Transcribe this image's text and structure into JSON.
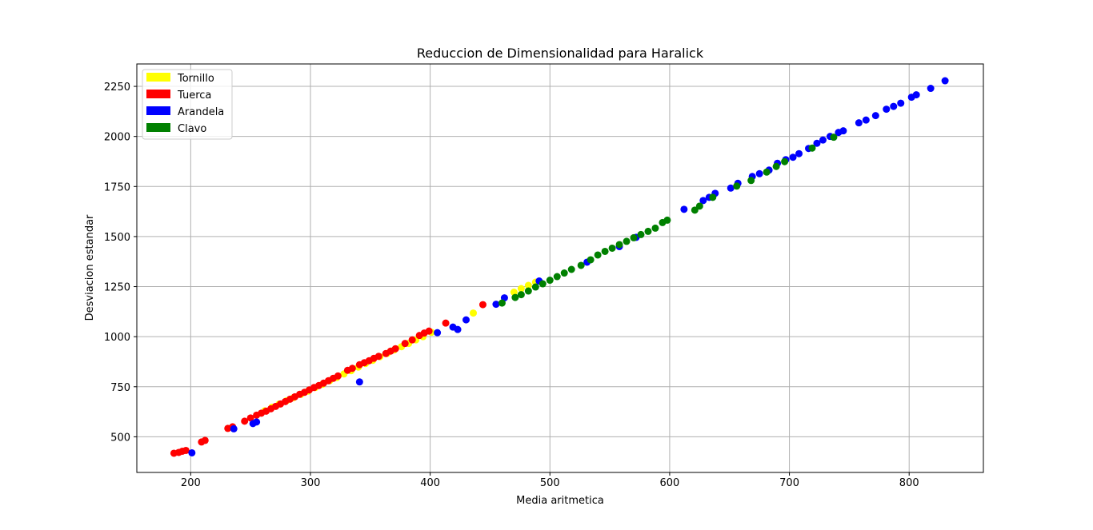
{
  "chart_data": {
    "type": "scatter",
    "title": "Reduccion de Dimensionalidad para Haralick",
    "xlabel": "Media aritmetica",
    "ylabel": "Desviacion estandar",
    "xlim": [
      155,
      862
    ],
    "ylim": [
      322,
      2362
    ],
    "xticks": [
      200,
      300,
      400,
      500,
      600,
      700,
      800
    ],
    "yticks": [
      500,
      750,
      1000,
      1250,
      1500,
      1750,
      2000,
      2250
    ],
    "grid": true,
    "legend_position": "top-left",
    "series": [
      {
        "name": "Tornillo",
        "color": "#ffff00",
        "points": [
          [
            262,
            630
          ],
          [
            268,
            648
          ],
          [
            274,
            664
          ],
          [
            280,
            680
          ],
          [
            286,
            696
          ],
          [
            292,
            712
          ],
          [
            298,
            728
          ],
          [
            304,
            746
          ],
          [
            310,
            762
          ],
          [
            316,
            780
          ],
          [
            322,
            796
          ],
          [
            328,
            814
          ],
          [
            334,
            830
          ],
          [
            340,
            848
          ],
          [
            346,
            866
          ],
          [
            352,
            882
          ],
          [
            358,
            900
          ],
          [
            364,
            916
          ],
          [
            370,
            934
          ],
          [
            376,
            950
          ],
          [
            382,
            966
          ],
          [
            388,
            984
          ],
          [
            394,
            1000
          ],
          [
            401,
            1022
          ],
          [
            436,
            1118
          ],
          [
            470,
            1222
          ],
          [
            476,
            1240
          ],
          [
            482,
            1256
          ],
          [
            488,
            1272
          ]
        ]
      },
      {
        "name": "Tuerca",
        "color": "#ff0000",
        "points": [
          [
            186,
            418
          ],
          [
            190,
            422
          ],
          [
            193,
            428
          ],
          [
            196,
            432
          ],
          [
            209,
            474
          ],
          [
            212,
            482
          ],
          [
            231,
            542
          ],
          [
            235,
            550
          ],
          [
            245,
            578
          ],
          [
            250,
            594
          ],
          [
            255,
            608
          ],
          [
            259,
            618
          ],
          [
            263,
            628
          ],
          [
            267,
            640
          ],
          [
            271,
            652
          ],
          [
            275,
            664
          ],
          [
            279,
            676
          ],
          [
            283,
            688
          ],
          [
            287,
            700
          ],
          [
            291,
            712
          ],
          [
            295,
            722
          ],
          [
            299,
            734
          ],
          [
            303,
            746
          ],
          [
            307,
            756
          ],
          [
            311,
            768
          ],
          [
            315,
            780
          ],
          [
            319,
            792
          ],
          [
            323,
            804
          ],
          [
            331,
            832
          ],
          [
            335,
            842
          ],
          [
            341,
            860
          ],
          [
            345,
            870
          ],
          [
            349,
            880
          ],
          [
            353,
            892
          ],
          [
            357,
            902
          ],
          [
            363,
            916
          ],
          [
            367,
            928
          ],
          [
            371,
            940
          ],
          [
            379,
            966
          ],
          [
            385,
            984
          ],
          [
            391,
            1006
          ],
          [
            395,
            1018
          ],
          [
            399,
            1028
          ],
          [
            413,
            1068
          ],
          [
            444,
            1160
          ]
        ]
      },
      {
        "name": "Arandela",
        "color": "#0000ff",
        "points": [
          [
            201,
            420
          ],
          [
            236,
            540
          ],
          [
            252,
            566
          ],
          [
            255,
            574
          ],
          [
            341,
            774
          ],
          [
            406,
            1020
          ],
          [
            419,
            1048
          ],
          [
            423,
            1036
          ],
          [
            430,
            1084
          ],
          [
            455,
            1162
          ],
          [
            462,
            1194
          ],
          [
            491,
            1278
          ],
          [
            531,
            1372
          ],
          [
            558,
            1450
          ],
          [
            572,
            1496
          ],
          [
            612,
            1636
          ],
          [
            628,
            1680
          ],
          [
            633,
            1696
          ],
          [
            638,
            1716
          ],
          [
            651,
            1742
          ],
          [
            657,
            1766
          ],
          [
            669,
            1800
          ],
          [
            675,
            1814
          ],
          [
            683,
            1832
          ],
          [
            690,
            1866
          ],
          [
            697,
            1884
          ],
          [
            703,
            1896
          ],
          [
            708,
            1914
          ],
          [
            716,
            1940
          ],
          [
            723,
            1966
          ],
          [
            728,
            1982
          ],
          [
            734,
            2000
          ],
          [
            741,
            2020
          ],
          [
            745,
            2028
          ],
          [
            758,
            2068
          ],
          [
            764,
            2082
          ],
          [
            772,
            2104
          ],
          [
            781,
            2136
          ],
          [
            787,
            2150
          ],
          [
            793,
            2166
          ],
          [
            802,
            2196
          ],
          [
            806,
            2208
          ],
          [
            818,
            2240
          ],
          [
            830,
            2278
          ]
        ]
      },
      {
        "name": "Clavo",
        "color": "#008000",
        "points": [
          [
            460,
            1168
          ],
          [
            471,
            1196
          ],
          [
            476,
            1210
          ],
          [
            482,
            1228
          ],
          [
            488,
            1248
          ],
          [
            494,
            1264
          ],
          [
            500,
            1282
          ],
          [
            506,
            1300
          ],
          [
            512,
            1318
          ],
          [
            518,
            1336
          ],
          [
            526,
            1356
          ],
          [
            534,
            1384
          ],
          [
            540,
            1408
          ],
          [
            546,
            1426
          ],
          [
            552,
            1442
          ],
          [
            558,
            1460
          ],
          [
            564,
            1476
          ],
          [
            570,
            1494
          ],
          [
            576,
            1510
          ],
          [
            582,
            1526
          ],
          [
            588,
            1542
          ],
          [
            594,
            1570
          ],
          [
            598,
            1582
          ],
          [
            621,
            1632
          ],
          [
            625,
            1652
          ],
          [
            636,
            1696
          ],
          [
            656,
            1752
          ],
          [
            668,
            1780
          ],
          [
            681,
            1822
          ],
          [
            689,
            1850
          ],
          [
            696,
            1874
          ],
          [
            719,
            1942
          ],
          [
            737,
            1996
          ]
        ]
      }
    ]
  }
}
